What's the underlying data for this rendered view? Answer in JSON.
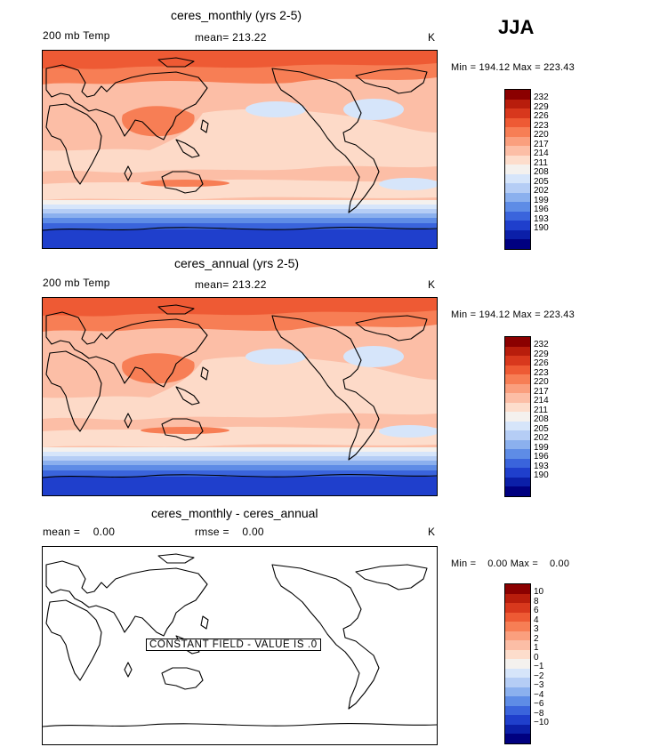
{
  "season": "JJA",
  "panels": [
    {
      "title": "ceres_monthly (yrs 2-5)",
      "left_label": "200 mb Temp",
      "center_label": "mean= 213.22",
      "units": "K",
      "minmax": "Min = 194.12 Max = 223.43",
      "constant_text": ""
    },
    {
      "title": "ceres_annual (yrs 2-5)",
      "left_label": "200 mb Temp",
      "center_label": "mean= 213.22",
      "units": "K",
      "minmax": "Min = 194.12 Max = 223.43",
      "constant_text": ""
    },
    {
      "title": "ceres_monthly - ceres_annual",
      "left_label": "mean =    0.00",
      "center_label": "rmse =    0.00",
      "units": "K",
      "minmax": "Min =    0.00 Max =    0.00",
      "constant_text": "CONSTANT FIELD - VALUE IS .0"
    }
  ],
  "colorbar_abs": {
    "labels": [
      "232",
      "229",
      "226",
      "223",
      "220",
      "217",
      "214",
      "211",
      "208",
      "205",
      "202",
      "199",
      "196",
      "193",
      "190"
    ],
    "colors": [
      "#8b0000",
      "#b81d0c",
      "#d8381d",
      "#ee5a34",
      "#f77e55",
      "#fa9f7e",
      "#fcbea6",
      "#fdddcc",
      "#f4f1ee",
      "#d6e5fa",
      "#b5cdf5",
      "#8bb0ee",
      "#5e8ce6",
      "#3a64dc",
      "#1f3fcc",
      "#0b1fa8",
      "#000080"
    ]
  },
  "colorbar_diff": {
    "labels": [
      "10",
      "8",
      "6",
      "4",
      "3",
      "2",
      "1",
      "0",
      "−1",
      "−2",
      "−3",
      "−4",
      "−6",
      "−8",
      "−10"
    ],
    "colors": [
      "#8b0000",
      "#b81d0c",
      "#d8381d",
      "#ee5a34",
      "#f77e55",
      "#fa9f7e",
      "#fcbea6",
      "#fdddcc",
      "#f4f1ee",
      "#d6e5fa",
      "#b5cdf5",
      "#8bb0ee",
      "#5e8ce6",
      "#3a64dc",
      "#1f3fcc",
      "#0b1fa8",
      "#000080"
    ]
  }
}
